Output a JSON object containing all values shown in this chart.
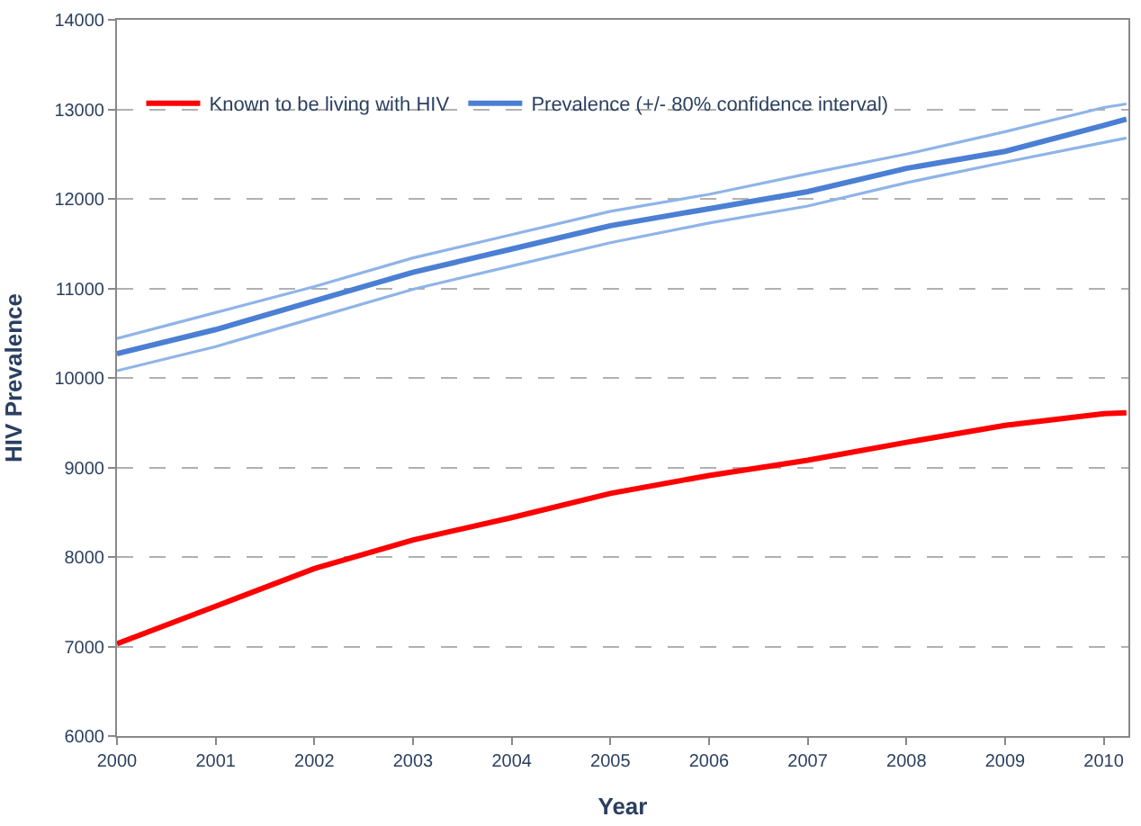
{
  "chart_data": {
    "type": "line",
    "xlabel": "Year",
    "ylabel": "HIV Prevalence",
    "x": [
      2000,
      2001,
      2002,
      2003,
      2004,
      2005,
      2006,
      2007,
      2008,
      2009,
      2010,
      2010.23
    ],
    "series": [
      {
        "name": "Known to be living with HIV",
        "color": "#ff0000",
        "values": [
          7030,
          7450,
          7870,
          8190,
          8440,
          8710,
          8910,
          9080,
          9280,
          9470,
          9600,
          9610
        ]
      },
      {
        "name": "Prevalence (+/- 80% confidence interval)",
        "color": "#4a7fd4",
        "values": [
          10270,
          10540,
          10860,
          11180,
          11440,
          11700,
          11890,
          12080,
          12340,
          12530,
          12820,
          12890
        ]
      },
      {
        "color": "#8fb4e8",
        "values": [
          10080,
          10350,
          10670,
          10990,
          11250,
          11510,
          11730,
          11920,
          12180,
          12410,
          12630,
          12680
        ]
      },
      {
        "color": "#8fb4e8",
        "values": [
          10440,
          10730,
          11020,
          11340,
          11600,
          11860,
          12050,
          12280,
          12500,
          12750,
          13020,
          13060
        ]
      }
    ],
    "xlim": [
      2000,
      2010.25
    ],
    "xticks": [
      2000,
      2001,
      2002,
      2003,
      2004,
      2005,
      2006,
      2007,
      2008,
      2009,
      2010
    ],
    "ylim": [
      6000,
      14000
    ],
    "yticks": [
      6000,
      7000,
      8000,
      9000,
      10000,
      11000,
      12000,
      13000,
      14000
    ],
    "grid": "y",
    "legend": "top left",
    "marker": "none",
    "line_style": "solid"
  }
}
